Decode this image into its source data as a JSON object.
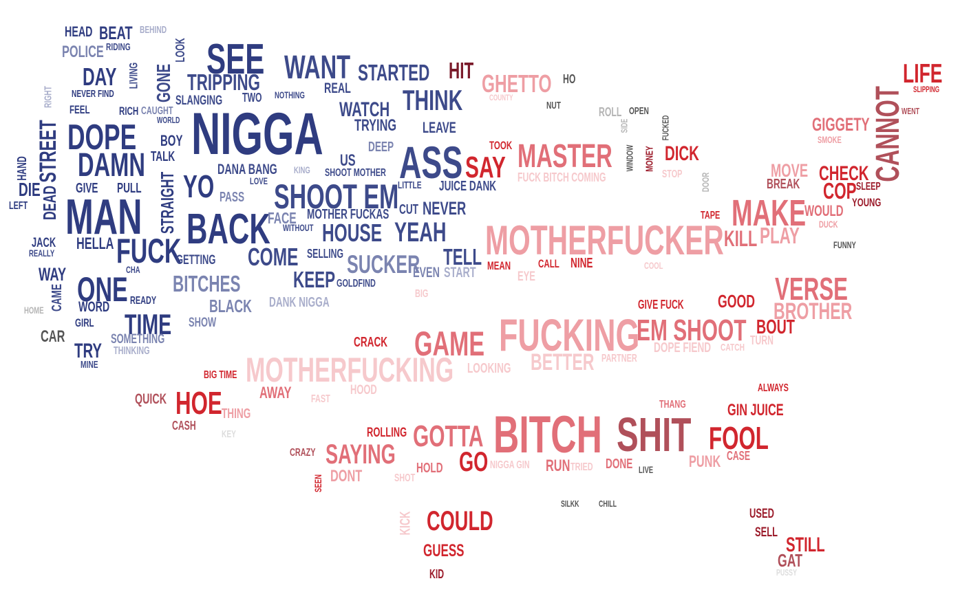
{
  "palette": {
    "blue_dark": "#2f3c80",
    "blue_mid": "#3d4a8a",
    "blue_light": "#7b84b0",
    "blue_pale": "#a9aecb",
    "gray_dark": "#555555",
    "gray_light": "#b5b5b5",
    "red_dark": "#9b1b2a",
    "red": "#d1262e",
    "red_mid": "#e16f78",
    "pink": "#ee9ea4",
    "pink_pale": "#f6c9cc",
    "brown_red": "#b0505a"
  },
  "words": [
    {
      "text": "HEAD",
      "color": "#2f3c80"
    },
    {
      "text": "BEAT",
      "color": "#2f3c80"
    },
    {
      "text": "BEHIND",
      "color": "#a9aecb"
    },
    {
      "text": "POLICE",
      "color": "#7b84b0"
    },
    {
      "text": "RIDING",
      "color": "#3d4a8a"
    },
    {
      "text": "DAY",
      "color": "#2f3c80"
    },
    {
      "text": "LIVING",
      "color": "#3d4a8a"
    },
    {
      "text": "GONE",
      "color": "#3d4a8a"
    },
    {
      "text": "LOOK",
      "color": "#3d4a8a"
    },
    {
      "text": "SEE",
      "color": "#2f3c80"
    },
    {
      "text": "TRIPPING",
      "color": "#3d4a8a"
    },
    {
      "text": "TWO",
      "color": "#3d4a8a"
    },
    {
      "text": "NOTHING",
      "color": "#3d4a8a"
    },
    {
      "text": "WANT",
      "color": "#3d4a8a"
    },
    {
      "text": "STARTED",
      "color": "#3d4a8a"
    },
    {
      "text": "HIT",
      "color": "#7a1a2a"
    },
    {
      "text": "GHETTO",
      "color": "#ee9ea4"
    },
    {
      "text": "HO",
      "color": "#555555"
    },
    {
      "text": "COUNTY",
      "color": "#f6c9cc"
    },
    {
      "text": "NUT",
      "color": "#555555"
    },
    {
      "text": "ROLL",
      "color": "#b5b5b5"
    },
    {
      "text": "OPEN",
      "color": "#555555"
    },
    {
      "text": "LIFE",
      "color": "#d1262e"
    },
    {
      "text": "SLIPPING",
      "color": "#d1262e"
    },
    {
      "text": "WENT",
      "color": "#b0505a"
    },
    {
      "text": "CANNOT",
      "color": "#b0505a"
    },
    {
      "text": "GIGGETY",
      "color": "#e16f78"
    },
    {
      "text": "SMOKE",
      "color": "#ee9ea4"
    },
    {
      "text": "RIGHT",
      "color": "#a9aecb"
    },
    {
      "text": "NEVER FIND",
      "color": "#2f3c80"
    },
    {
      "text": "FEEL",
      "color": "#2f3c80"
    },
    {
      "text": "RICH",
      "color": "#2f3c80"
    },
    {
      "text": "CAUGHT",
      "color": "#7b84b0"
    },
    {
      "text": "WORLD",
      "color": "#3d4a8a"
    },
    {
      "text": "SLANGING",
      "color": "#3d4a8a"
    },
    {
      "text": "REAL",
      "color": "#3d4a8a"
    },
    {
      "text": "WATCH",
      "color": "#3d4a8a"
    },
    {
      "text": "THINK",
      "color": "#3d4a8a"
    },
    {
      "text": "TRYING",
      "color": "#3d4a8a"
    },
    {
      "text": "LEAVE",
      "color": "#3d4a8a"
    },
    {
      "text": "NIGGA",
      "color": "#2f3c80"
    },
    {
      "text": "DOPE",
      "color": "#2f3c80"
    },
    {
      "text": "BOY",
      "color": "#2f3c80"
    },
    {
      "text": "DEEP",
      "color": "#7b84b0"
    },
    {
      "text": "TOOK",
      "color": "#d1262e"
    },
    {
      "text": "MASTER",
      "color": "#e16f78"
    },
    {
      "text": "DICK",
      "color": "#d1262e"
    },
    {
      "text": "WINDOW",
      "color": "#555555"
    },
    {
      "text": "MONEY",
      "color": "#9b1b2a"
    },
    {
      "text": "FUCKED",
      "color": "#555555"
    },
    {
      "text": "SIDE",
      "color": "#b5b5b5"
    },
    {
      "text": "STOP",
      "color": "#f6c9cc"
    },
    {
      "text": "DOOR",
      "color": "#b5b5b5"
    },
    {
      "text": "MOVE",
      "color": "#ee9ea4"
    },
    {
      "text": "CHECK",
      "color": "#d1262e"
    },
    {
      "text": "BREAK",
      "color": "#b0505a"
    },
    {
      "text": "COP",
      "color": "#d1262e"
    },
    {
      "text": "SLEEP",
      "color": "#9b1b2a"
    },
    {
      "text": "YOUNG",
      "color": "#9b1b2a"
    },
    {
      "text": "HAND",
      "color": "#2f3c80"
    },
    {
      "text": "STREET",
      "color": "#2f3c80"
    },
    {
      "text": "DAMN",
      "color": "#2f3c80"
    },
    {
      "text": "TALK",
      "color": "#2f3c80"
    },
    {
      "text": "DANA BANG",
      "color": "#3d4a8a"
    },
    {
      "text": "KING",
      "color": "#a9aecb"
    },
    {
      "text": "US",
      "color": "#3d4a8a"
    },
    {
      "text": "SHOOT MOTHER",
      "color": "#3d4a8a"
    },
    {
      "text": "ASS",
      "color": "#3d4a8a"
    },
    {
      "text": "SAY",
      "color": "#d1262e"
    },
    {
      "text": "FUCK BITCH COMING",
      "color": "#f6c9cc"
    },
    {
      "text": "DIE",
      "color": "#2f3c80"
    },
    {
      "text": "DEAD",
      "color": "#2f3c80"
    },
    {
      "text": "GIVE",
      "color": "#2f3c80"
    },
    {
      "text": "PULL",
      "color": "#2f3c80"
    },
    {
      "text": "STRAIGHT",
      "color": "#2f3c80"
    },
    {
      "text": "YO",
      "color": "#2f3c80"
    },
    {
      "text": "LOVE",
      "color": "#3d4a8a"
    },
    {
      "text": "LITTLE",
      "color": "#3d4a8a"
    },
    {
      "text": "JUICE DANK",
      "color": "#3d4a8a"
    },
    {
      "text": "SHOOT EM",
      "color": "#3d4a8a"
    },
    {
      "text": "PASS",
      "color": "#7b84b0"
    },
    {
      "text": "LEFT",
      "color": "#2f3c80"
    },
    {
      "text": "MAN",
      "color": "#2f3c80"
    },
    {
      "text": "BACK",
      "color": "#2f3c80"
    },
    {
      "text": "FACE",
      "color": "#7b84b0"
    },
    {
      "text": "MOTHER FUCKAS",
      "color": "#3d4a8a"
    },
    {
      "text": "CUT",
      "color": "#3d4a8a"
    },
    {
      "text": "NEVER",
      "color": "#3d4a8a"
    },
    {
      "text": "MAKE",
      "color": "#e16f78"
    },
    {
      "text": "WOULD",
      "color": "#e16f78"
    },
    {
      "text": "DUCK",
      "color": "#ee9ea4"
    },
    {
      "text": "TAPE",
      "color": "#d1262e"
    },
    {
      "text": "KILL",
      "color": "#e16f78"
    },
    {
      "text": "PLAY",
      "color": "#ee9ea4"
    },
    {
      "text": "FUNNY",
      "color": "#555555"
    },
    {
      "text": "JACK",
      "color": "#2f3c80"
    },
    {
      "text": "REALLY",
      "color": "#3d4a8a"
    },
    {
      "text": "HELLA",
      "color": "#2f3c80"
    },
    {
      "text": "FUCK",
      "color": "#2f3c80"
    },
    {
      "text": "WITHOUT",
      "color": "#3d4a8a"
    },
    {
      "text": "HOUSE",
      "color": "#3d4a8a"
    },
    {
      "text": "YEAH",
      "color": "#3d4a8a"
    },
    {
      "text": "MOTHERFUCKER",
      "color": "#ee9ea4"
    },
    {
      "text": "COME",
      "color": "#3d4a8a"
    },
    {
      "text": "GETTING",
      "color": "#3d4a8a"
    },
    {
      "text": "SELLING",
      "color": "#3d4a8a"
    },
    {
      "text": "SUCKER",
      "color": "#7b84b0"
    },
    {
      "text": "TELL",
      "color": "#3d4a8a"
    },
    {
      "text": "START",
      "color": "#a9aecb"
    },
    {
      "text": "EVEN",
      "color": "#7b84b0"
    },
    {
      "text": "MEAN",
      "color": "#d1262e"
    },
    {
      "text": "CALL",
      "color": "#d1262e"
    },
    {
      "text": "NINE",
      "color": "#d1262e"
    },
    {
      "text": "COOL",
      "color": "#f6c9cc"
    },
    {
      "text": "EYE",
      "color": "#f6c9cc"
    },
    {
      "text": "WAY",
      "color": "#2f3c80"
    },
    {
      "text": "CHA",
      "color": "#3d4a8a"
    },
    {
      "text": "ONE",
      "color": "#2f3c80"
    },
    {
      "text": "BITCHES",
      "color": "#7b84b0"
    },
    {
      "text": "KEEP",
      "color": "#3d4a8a"
    },
    {
      "text": "GOLDFIND",
      "color": "#3d4a8a"
    },
    {
      "text": "VERSE",
      "color": "#e16f78"
    },
    {
      "text": "BROTHER",
      "color": "#ee9ea4"
    },
    {
      "text": "CAME",
      "color": "#3d4a8a"
    },
    {
      "text": "WORD",
      "color": "#2f3c80"
    },
    {
      "text": "READY",
      "color": "#2f3c80"
    },
    {
      "text": "BLACK",
      "color": "#7b84b0"
    },
    {
      "text": "DANK NIGGA",
      "color": "#a9aecb"
    },
    {
      "text": "BIG",
      "color": "#f6c9cc"
    },
    {
      "text": "GIVE FUCK",
      "color": "#d1262e"
    },
    {
      "text": "GOOD",
      "color": "#d1262e"
    },
    {
      "text": "HOME",
      "color": "#b5b5b5"
    },
    {
      "text": "GIRL",
      "color": "#2f3c80"
    },
    {
      "text": "TIME",
      "color": "#2f3c80"
    },
    {
      "text": "SHOW",
      "color": "#7b84b0"
    },
    {
      "text": "FUCKING",
      "color": "#ee9ea4"
    },
    {
      "text": "EM SHOOT",
      "color": "#e16f78"
    },
    {
      "text": "BOUT",
      "color": "#d1262e"
    },
    {
      "text": "CAR",
      "color": "#555555"
    },
    {
      "text": "SOMETHING",
      "color": "#7b84b0"
    },
    {
      "text": "THINKING",
      "color": "#a9aecb"
    },
    {
      "text": "TRY",
      "color": "#2f3c80"
    },
    {
      "text": "MINE",
      "color": "#3d4a8a"
    },
    {
      "text": "CRACK",
      "color": "#d1262e"
    },
    {
      "text": "GAME",
      "color": "#e16f78"
    },
    {
      "text": "DOPE FIEND",
      "color": "#f6c9cc"
    },
    {
      "text": "CATCH",
      "color": "#f6c9cc"
    },
    {
      "text": "TURN",
      "color": "#f6c9cc"
    },
    {
      "text": "MOTHERFUCKING",
      "color": "#f6c9cc"
    },
    {
      "text": "LOOKING",
      "color": "#f6c9cc"
    },
    {
      "text": "BETTER",
      "color": "#f6c9cc"
    },
    {
      "text": "PARTNER",
      "color": "#f6c9cc"
    },
    {
      "text": "BIG TIME",
      "color": "#d1262e"
    },
    {
      "text": "AWAY",
      "color": "#e16f78"
    },
    {
      "text": "FAST",
      "color": "#f6c9cc"
    },
    {
      "text": "HOOD",
      "color": "#f6c9cc"
    },
    {
      "text": "ALWAYS",
      "color": "#d1262e"
    },
    {
      "text": "QUICK",
      "color": "#b0505a"
    },
    {
      "text": "HOE",
      "color": "#d1262e"
    },
    {
      "text": "THING",
      "color": "#ee9ea4"
    },
    {
      "text": "CASH",
      "color": "#b0505a"
    },
    {
      "text": "KEY",
      "color": "#dddddd"
    },
    {
      "text": "THANG",
      "color": "#e16f78"
    },
    {
      "text": "GIN JUICE",
      "color": "#d1262e"
    },
    {
      "text": "ROLLING",
      "color": "#d1262e"
    },
    {
      "text": "GOTTA",
      "color": "#e16f78"
    },
    {
      "text": "BITCH",
      "color": "#e16f78"
    },
    {
      "text": "SHIT",
      "color": "#b0505a"
    },
    {
      "text": "FOOL",
      "color": "#d1262e"
    },
    {
      "text": "CRAZY",
      "color": "#b0505a"
    },
    {
      "text": "SAYING",
      "color": "#e16f78"
    },
    {
      "text": "GO",
      "color": "#d1262e"
    },
    {
      "text": "NIGGA GIN",
      "color": "#f6c9cc"
    },
    {
      "text": "RUN",
      "color": "#e16f78"
    },
    {
      "text": "TRIED",
      "color": "#f6c9cc"
    },
    {
      "text": "DONE",
      "color": "#e16f78"
    },
    {
      "text": "CASE",
      "color": "#e16f78"
    },
    {
      "text": "PUNK",
      "color": "#ee9ea4"
    },
    {
      "text": "LIVE",
      "color": "#555555"
    },
    {
      "text": "HOLD",
      "color": "#e16f78"
    },
    {
      "text": "DONT",
      "color": "#ee9ea4"
    },
    {
      "text": "SHOT",
      "color": "#f6c9cc"
    },
    {
      "text": "SEEN",
      "color": "#d1262e"
    },
    {
      "text": "SILKK",
      "color": "#555555"
    },
    {
      "text": "CHILL",
      "color": "#555555"
    },
    {
      "text": "USED",
      "color": "#9b1b2a"
    },
    {
      "text": "SELL",
      "color": "#9b1b2a"
    },
    {
      "text": "KICK",
      "color": "#f6c9cc"
    },
    {
      "text": "COULD",
      "color": "#d1262e"
    },
    {
      "text": "STILL",
      "color": "#d1262e"
    },
    {
      "text": "GAT",
      "color": "#b0505a"
    },
    {
      "text": "PUSSY",
      "color": "#dddddd"
    },
    {
      "text": "GUESS",
      "color": "#d1262e"
    },
    {
      "text": "KID",
      "color": "#9b1b2a"
    }
  ]
}
